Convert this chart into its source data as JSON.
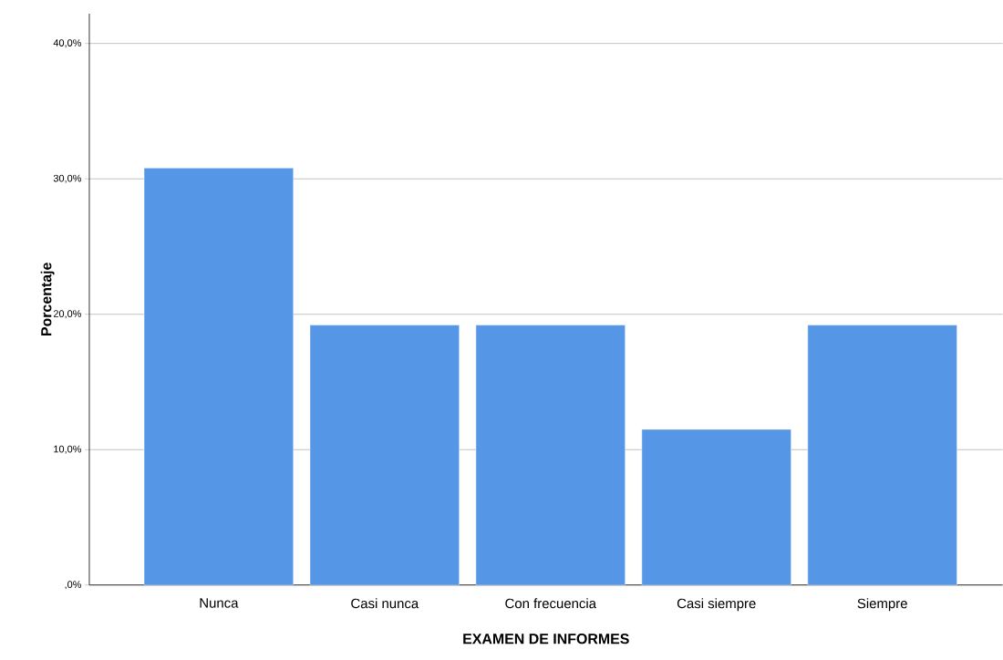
{
  "chart_data": {
    "type": "bar",
    "xlabel": "EXAMEN DE INFORMES",
    "ylabel": "Porcentaje",
    "categories": [
      "Nunca",
      "Casi nunca",
      "Con frecuencia",
      "Casi siempre",
      "Siempre"
    ],
    "values": [
      30.8,
      19.2,
      19.2,
      11.5,
      19.2
    ],
    "color": "#5596e6",
    "ylim": [
      0,
      42.2
    ],
    "yticks": [
      {
        "value": 0,
        "label": ",0%"
      },
      {
        "value": 10,
        "label": "10,0%"
      },
      {
        "value": 20,
        "label": "20,0%"
      },
      {
        "value": 30,
        "label": "30,0%"
      },
      {
        "value": 40,
        "label": "40,0%"
      }
    ],
    "grid": "y"
  }
}
